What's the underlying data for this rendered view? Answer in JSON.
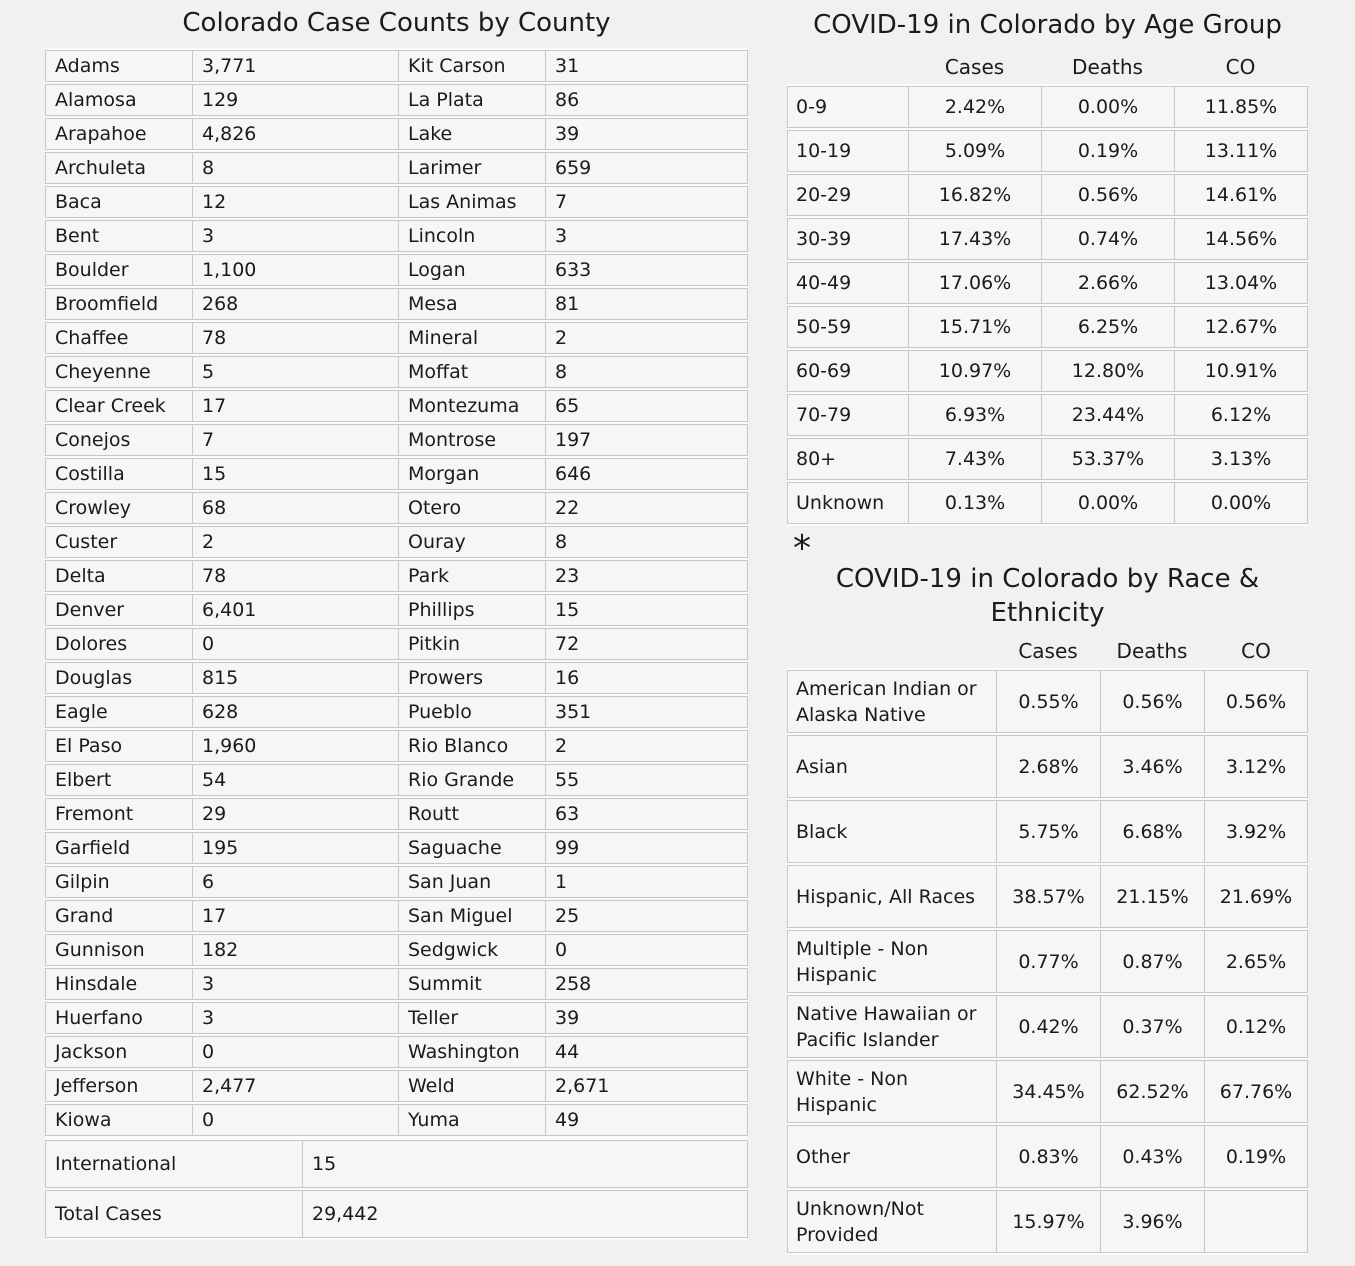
{
  "footnote_marker": "*",
  "colors": {
    "page_background": "#f2f1ef",
    "cell_background": "#f7f6f4",
    "cell_border": "#c9c8c6",
    "text": "#1c1b19"
  },
  "chart_data": [
    {
      "type": "table",
      "title": "Colorado Case Counts by County",
      "rows": [
        [
          "Adams",
          "3,771",
          "Kit Carson",
          "31"
        ],
        [
          "Alamosa",
          "129",
          "La Plata",
          "86"
        ],
        [
          "Arapahoe",
          "4,826",
          "Lake",
          "39"
        ],
        [
          "Archuleta",
          "8",
          "Larimer",
          "659"
        ],
        [
          "Baca",
          "12",
          "Las Animas",
          "7"
        ],
        [
          "Bent",
          "3",
          "Lincoln",
          "3"
        ],
        [
          "Boulder",
          "1,100",
          "Logan",
          "633"
        ],
        [
          "Broomfield",
          "268",
          "Mesa",
          "81"
        ],
        [
          "Chaffee",
          "78",
          "Mineral",
          "2"
        ],
        [
          "Cheyenne",
          "5",
          "Moffat",
          "8"
        ],
        [
          "Clear Creek",
          "17",
          "Montezuma",
          "65"
        ],
        [
          "Conejos",
          "7",
          "Montrose",
          "197"
        ],
        [
          "Costilla",
          "15",
          "Morgan",
          "646"
        ],
        [
          "Crowley",
          "68",
          "Otero",
          "22"
        ],
        [
          "Custer",
          "2",
          "Ouray",
          "8"
        ],
        [
          "Delta",
          "78",
          "Park",
          "23"
        ],
        [
          "Denver",
          "6,401",
          "Phillips",
          "15"
        ],
        [
          "Dolores",
          "0",
          "Pitkin",
          "72"
        ],
        [
          "Douglas",
          "815",
          "Prowers",
          "16"
        ],
        [
          "Eagle",
          "628",
          "Pueblo",
          "351"
        ],
        [
          "El Paso",
          "1,960",
          "Rio Blanco",
          "2"
        ],
        [
          "Elbert",
          "54",
          "Rio Grande",
          "55"
        ],
        [
          "Fremont",
          "29",
          "Routt",
          "63"
        ],
        [
          "Garfield",
          "195",
          "Saguache",
          "99"
        ],
        [
          "Gilpin",
          "6",
          "San Juan",
          "1"
        ],
        [
          "Grand",
          "17",
          "San Miguel",
          "25"
        ],
        [
          "Gunnison",
          "182",
          "Sedgwick",
          "0"
        ],
        [
          "Hinsdale",
          "3",
          "Summit",
          "258"
        ],
        [
          "Huerfano",
          "3",
          "Teller",
          "39"
        ],
        [
          "Jackson",
          "0",
          "Washington",
          "44"
        ],
        [
          "Jefferson",
          "2,477",
          "Weld",
          "2,671"
        ],
        [
          "Kiowa",
          "0",
          "Yuma",
          "49"
        ]
      ],
      "footer_rows": [
        [
          "International",
          "15"
        ],
        [
          "Total Cases",
          "29,442"
        ]
      ]
    },
    {
      "type": "table",
      "title": "COVID-19 in Colorado by Age Group",
      "columns": [
        "Cases",
        "Deaths",
        "CO"
      ],
      "rows": [
        [
          "0-9",
          "2.42%",
          "0.00%",
          "11.85%"
        ],
        [
          "10-19",
          "5.09%",
          "0.19%",
          "13.11%"
        ],
        [
          "20-29",
          "16.82%",
          "0.56%",
          "14.61%"
        ],
        [
          "30-39",
          "17.43%",
          "0.74%",
          "14.56%"
        ],
        [
          "40-49",
          "17.06%",
          "2.66%",
          "13.04%"
        ],
        [
          "50-59",
          "15.71%",
          "6.25%",
          "12.67%"
        ],
        [
          "60-69",
          "10.97%",
          "12.80%",
          "10.91%"
        ],
        [
          "70-79",
          "6.93%",
          "23.44%",
          "6.12%"
        ],
        [
          "80+",
          "7.43%",
          "53.37%",
          "3.13%"
        ],
        [
          "Unknown",
          "0.13%",
          "0.00%",
          "0.00%"
        ]
      ]
    },
    {
      "type": "table",
      "title": "COVID-19 in Colorado by Race & Ethnicity",
      "columns": [
        "Cases",
        "Deaths",
        "CO"
      ],
      "rows": [
        [
          "American Indian or Alaska Native",
          "0.55%",
          "0.56%",
          "0.56%"
        ],
        [
          "Asian",
          "2.68%",
          "3.46%",
          "3.12%"
        ],
        [
          "Black",
          "5.75%",
          "6.68%",
          "3.92%"
        ],
        [
          "Hispanic, All Races",
          "38.57%",
          "21.15%",
          "21.69%"
        ],
        [
          "Multiple - Non Hispanic",
          "0.77%",
          "0.87%",
          "2.65%"
        ],
        [
          "Native Hawaiian or Pacific Islander",
          "0.42%",
          "0.37%",
          "0.12%"
        ],
        [
          "White - Non Hispanic",
          "34.45%",
          "62.52%",
          "67.76%"
        ],
        [
          "Other",
          "0.83%",
          "0.43%",
          "0.19%"
        ],
        [
          "Unknown/Not Provided",
          "15.97%",
          "3.96%",
          ""
        ]
      ]
    }
  ]
}
